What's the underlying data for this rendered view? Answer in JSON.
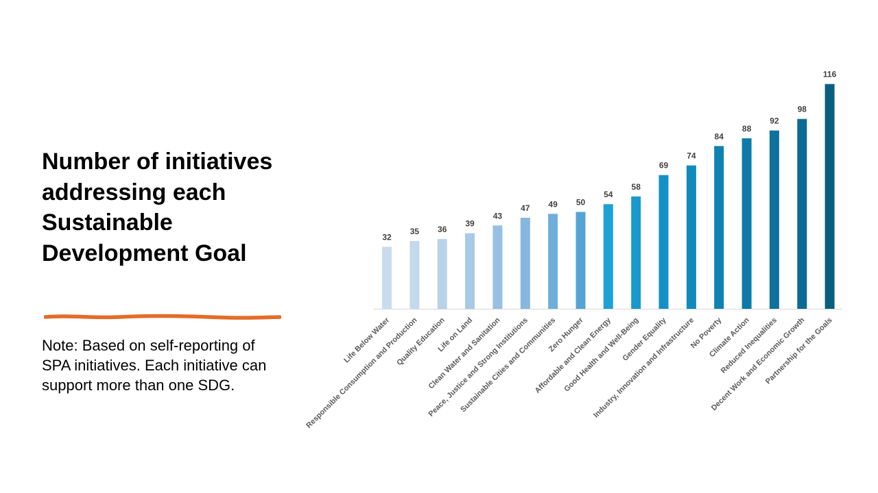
{
  "slide": {
    "title": "Number of initiatives addressing each Sustainable Development Goal",
    "note": "Note: Based on self-reporting of SPA initiatives. Each initiative can support more than one SDG.",
    "accent_color": "#E46C28"
  },
  "chart_data": {
    "type": "bar",
    "title": "",
    "xlabel": "",
    "ylabel": "",
    "ylim": [
      0,
      120
    ],
    "grid": false,
    "legend": "none",
    "categories": [
      "Life Below Water",
      "Responsible Consumption and Production",
      "Quality Education",
      "Life on Land",
      "Clean Water and Sanitation",
      "Peace, Justice and Strong Institutions",
      "Sustainable Cities and Communities",
      "Zero Hunger",
      "Affordable and Clean Energy",
      "Good Health and Well-Being",
      "Gender Equality",
      "Industry, Innovation and Infrastructure",
      "No Poverty",
      "Climate Action",
      "Reduced Inequalities",
      "Decent Work and Economic Growth",
      "Partnership for the Goals"
    ],
    "values": [
      32,
      35,
      36,
      39,
      43,
      47,
      49,
      50,
      54,
      58,
      69,
      74,
      84,
      88,
      92,
      98,
      116
    ],
    "colors": [
      "#C9DCEE",
      "#C3D9EC",
      "#B8D2EA",
      "#A9CAE6",
      "#97C0E2",
      "#86B7DE",
      "#6FAEDA",
      "#56A4D6",
      "#1EA1D6",
      "#1999CE",
      "#1391C5",
      "#118ABC",
      "#0F82B1",
      "#0E7AA8",
      "#0D739E",
      "#0B6B94",
      "#0A5F7F"
    ]
  }
}
